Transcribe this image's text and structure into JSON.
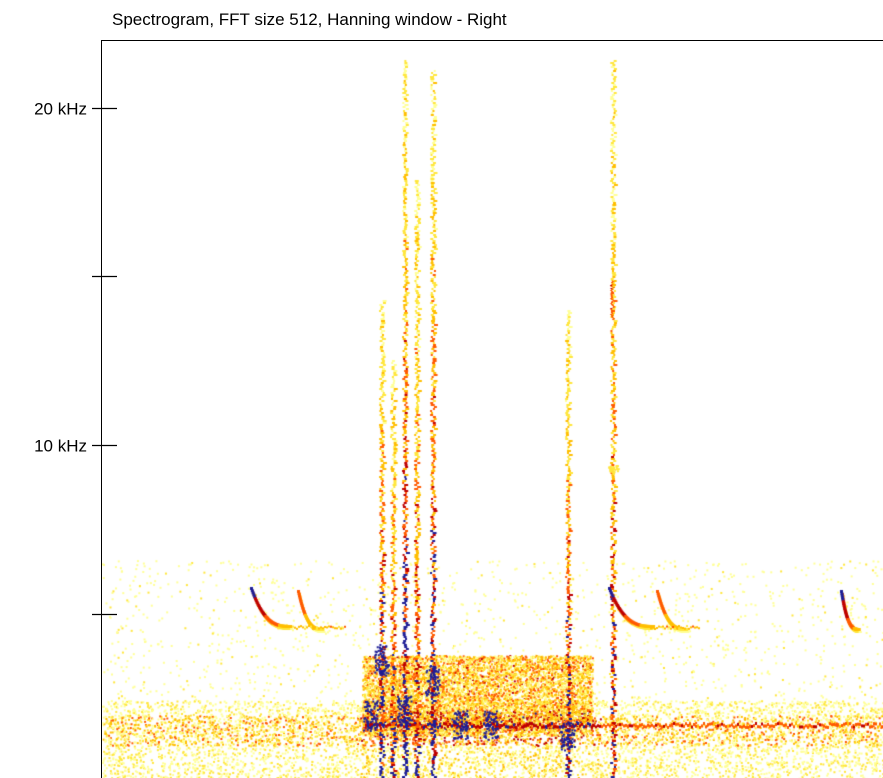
{
  "chart_data": {
    "type": "heatmap",
    "title": "Spectrogram, FFT size 512, Hanning window - Right",
    "xlabel": "",
    "ylabel": "",
    "ylim": [
      0,
      22
    ],
    "y_ticks": [
      {
        "value": 20,
        "label": "20 kHz"
      },
      {
        "value": 15,
        "label": ""
      },
      {
        "value": 10,
        "label": "10 kHz"
      },
      {
        "value": 5,
        "label": ""
      }
    ],
    "grid": false,
    "colormap": [
      "#ffffff",
      "#ffff80",
      "#ffd000",
      "#ff6000",
      "#b00000",
      "#1a1a9a"
    ]
  }
}
